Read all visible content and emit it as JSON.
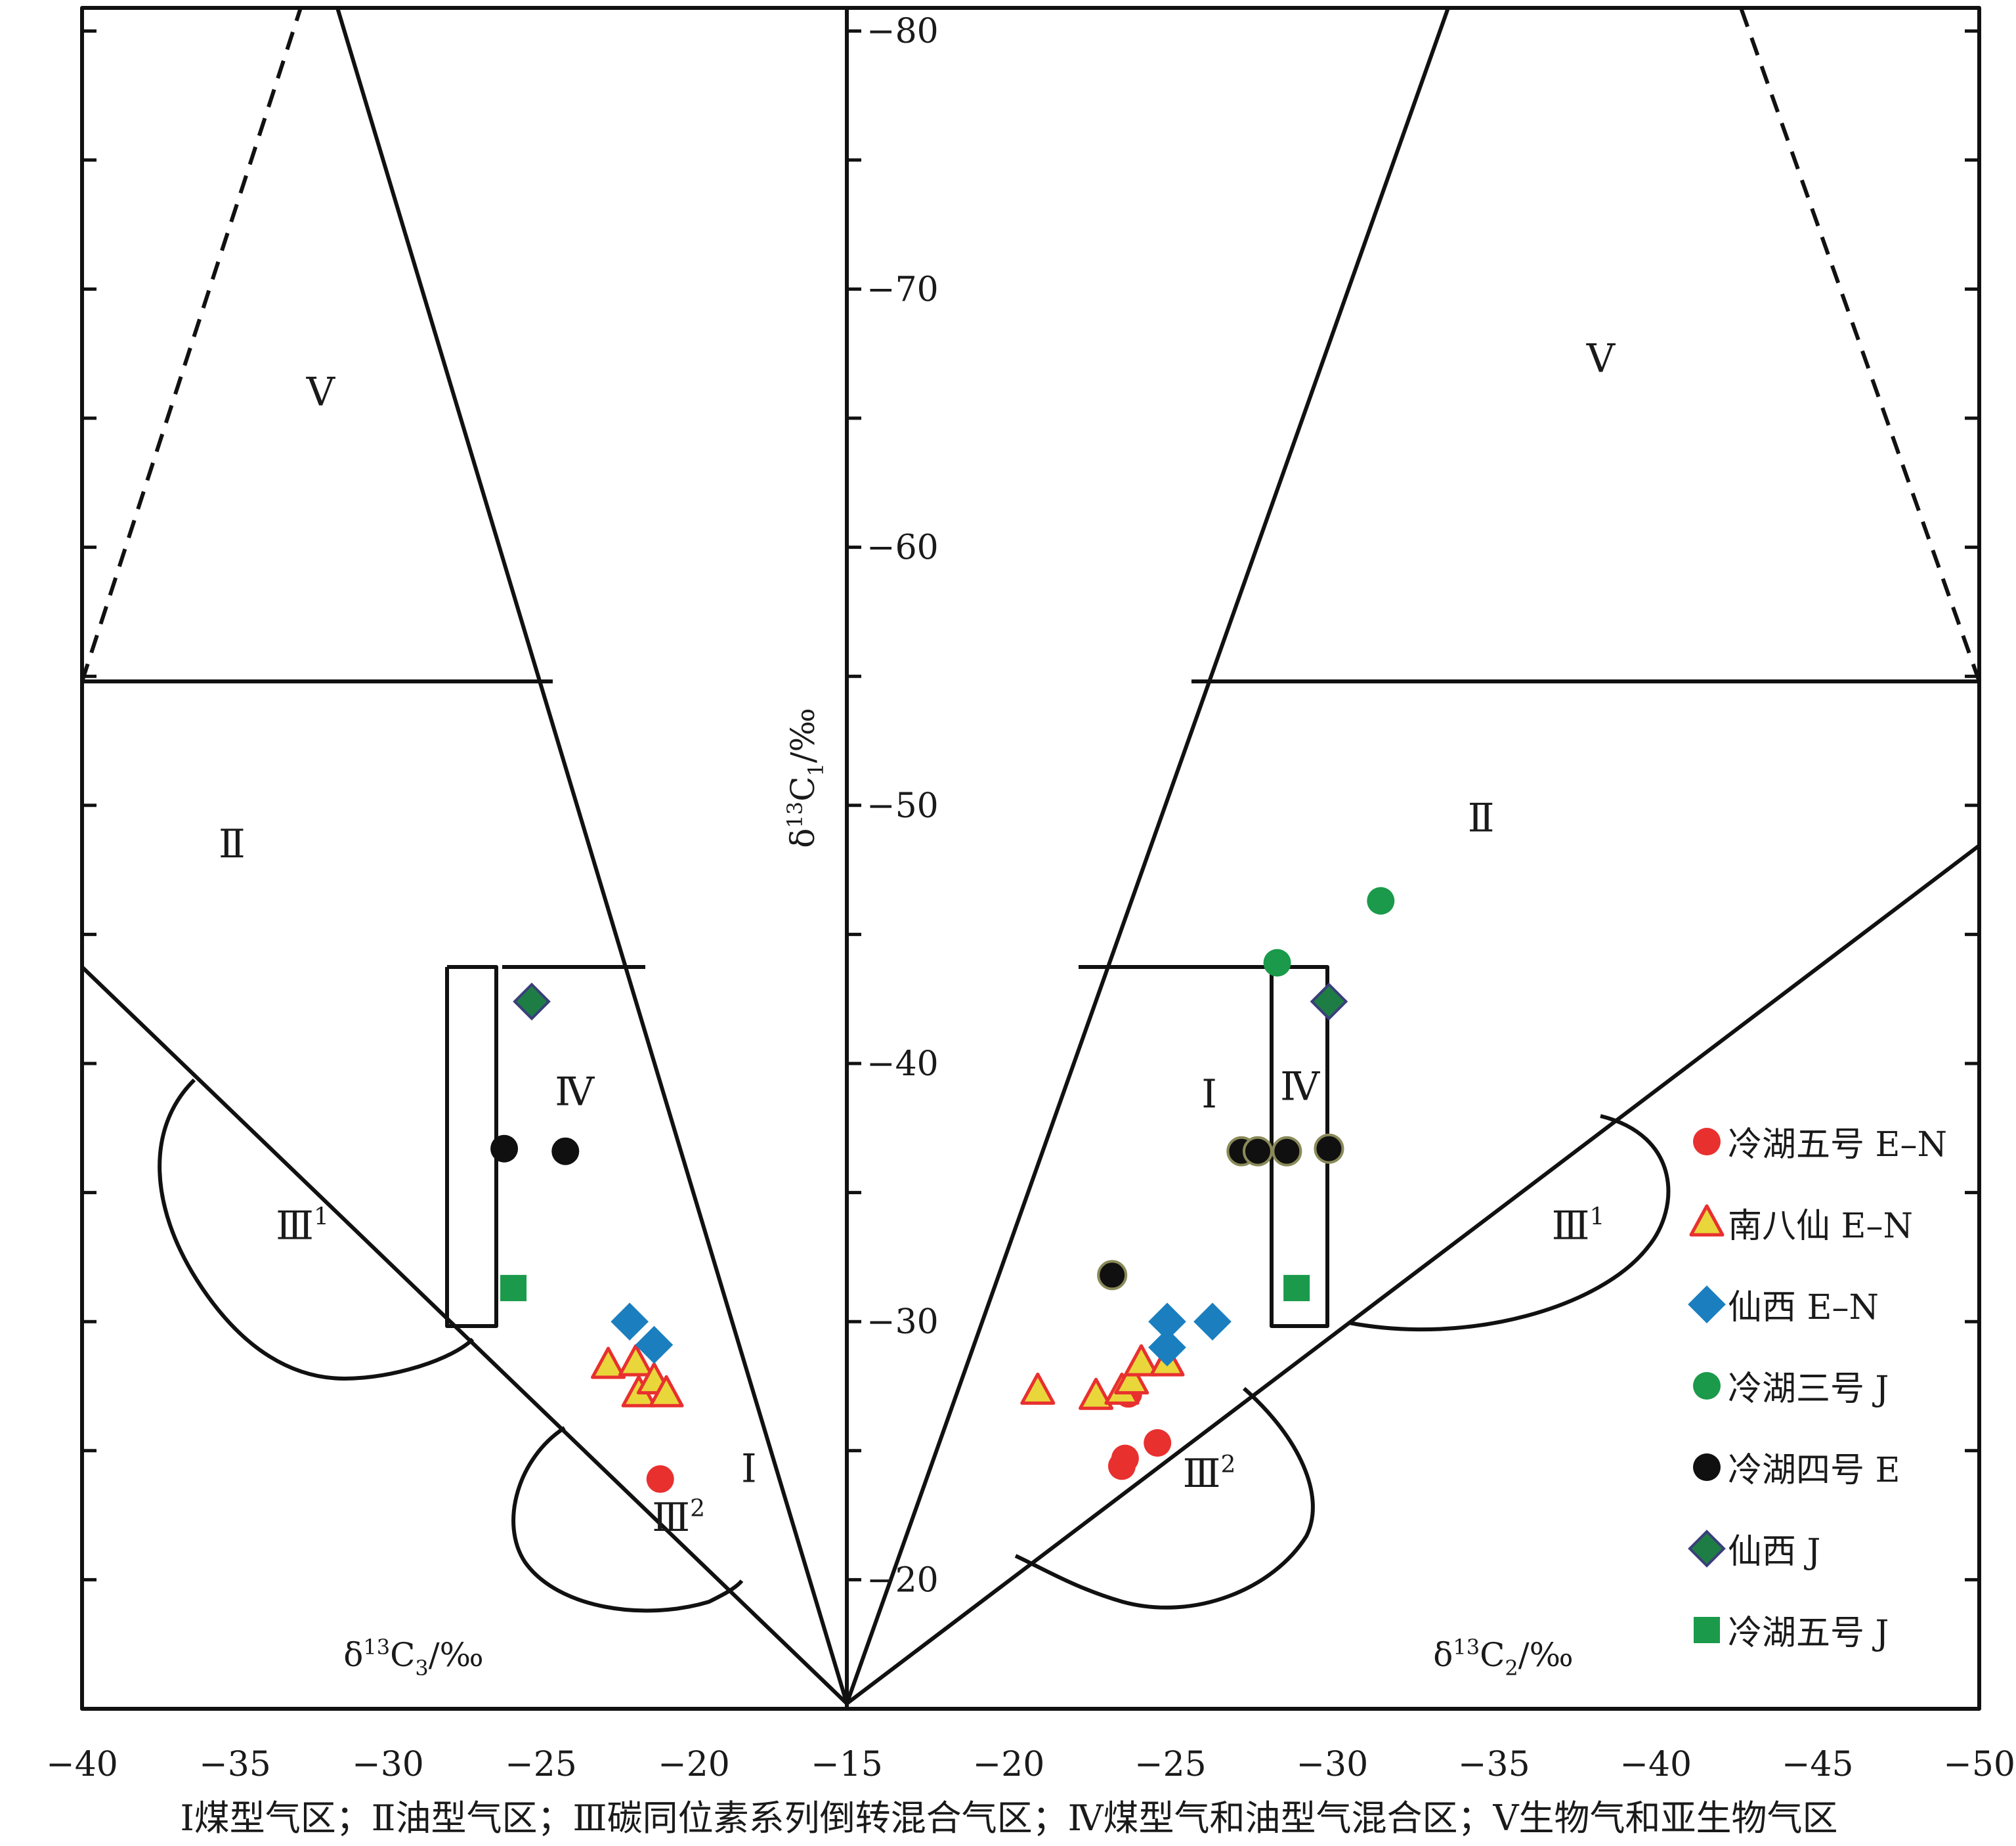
{
  "chart_data": {
    "type": "scatter",
    "title": "",
    "caption": "Ⅰ煤型气区；Ⅱ油型气区；Ⅲ碳同位素系列倒转混合气区；Ⅳ煤型气和油型气混合区；Ⅴ生物气和亚生物气区",
    "panels": [
      {
        "id": "left",
        "xlabel": "δ13C3/‰",
        "xlim": [
          -40,
          -15
        ],
        "xticks": [
          -40,
          -35,
          -30,
          -25,
          -20,
          -15
        ],
        "zone_labels": [
          {
            "text": "Ⅴ",
            "x": -32.2,
            "y": -66
          },
          {
            "text": "Ⅱ",
            "x": -35.1,
            "y": -48.5
          },
          {
            "text": "Ⅳ",
            "x": -23.9,
            "y": -38.9
          },
          {
            "text": "Ⅲ¹",
            "x": -32.8,
            "y": -33.7
          },
          {
            "text": "Ⅲ²",
            "x": -20.5,
            "y": -22.4
          },
          {
            "text": "Ⅰ",
            "x": -18.2,
            "y": -24.3
          }
        ]
      },
      {
        "id": "right",
        "xlabel": "δ13C2/‰",
        "xlim": [
          -15,
          -50
        ],
        "xticks": [
          -15,
          -20,
          -25,
          -30,
          -35,
          -40,
          -45,
          -50
        ],
        "zone_labels": [
          {
            "text": "Ⅴ",
            "x": -38.3,
            "y": -67.3
          },
          {
            "text": "Ⅱ",
            "x": -34.6,
            "y": -49.5
          },
          {
            "text": "Ⅰ",
            "x": -26.2,
            "y": -38.8
          },
          {
            "text": "Ⅳ",
            "x": -29.0,
            "y": -39.1
          },
          {
            "text": "Ⅲ¹",
            "x": -37.6,
            "y": -33.7
          },
          {
            "text": "Ⅲ²",
            "x": -26.2,
            "y": -24.1
          }
        ]
      }
    ],
    "ylabel": "δ13C1/‰",
    "ylim": [
      -15,
      -81
    ],
    "yticks": [
      -20,
      -30,
      -40,
      -50,
      -60,
      -70,
      -80
    ],
    "series": [
      {
        "name": "冷湖五号 E–N",
        "marker": "circle",
        "fill": "#e8302f",
        "stroke": "#e8302f",
        "left_points": [
          [
            -21.1,
            -23.9
          ]
        ],
        "right_points": [
          [
            -23.7,
            -27.2
          ],
          [
            -23.6,
            -24.7
          ],
          [
            -23.5,
            -24.4
          ],
          [
            -24.6,
            -25.3
          ]
        ]
      },
      {
        "name": "南八仙 E–N",
        "marker": "triangle",
        "fill": "#e9d63b",
        "stroke": "#e8302f",
        "left_points": [
          [
            -22.8,
            -28.3
          ],
          [
            -21.9,
            -28.4
          ],
          [
            -21.8,
            -27.2
          ],
          [
            -21.3,
            -27.7
          ],
          [
            -20.9,
            -27.2
          ]
        ],
        "right_points": [
          [
            -20.9,
            -27.3
          ],
          [
            -22.7,
            -27.1
          ],
          [
            -23.5,
            -27.3
          ],
          [
            -23.8,
            -27.7
          ],
          [
            -24.1,
            -28.4
          ],
          [
            -24.9,
            -28.4
          ]
        ]
      },
      {
        "name": "仙西 E–N",
        "marker": "diamond",
        "fill": "#1b7fbf",
        "stroke": "#1b7fbf",
        "left_points": [
          [
            -22.1,
            -30.0
          ],
          [
            -21.3,
            -29.1
          ]
        ],
        "right_points": [
          [
            -24.9,
            -30.0
          ],
          [
            -26.3,
            -30.0
          ],
          [
            -24.9,
            -29.0
          ]
        ]
      },
      {
        "name": "冷湖三号 J",
        "marker": "circle",
        "fill": "#1a9a4a",
        "stroke": "#1a9a4a",
        "left_points": [],
        "right_points": [
          [
            -28.3,
            -43.9
          ],
          [
            -31.5,
            -46.3
          ]
        ]
      },
      {
        "name": "冷湖四号 E",
        "marker": "circle",
        "fill": "#101010",
        "stroke": "#101010",
        "left_points": [
          [
            -26.2,
            -36.7
          ],
          [
            -24.2,
            -36.6
          ]
        ],
        "right_points": [
          [
            -23.2,
            -31.8
          ],
          [
            -27.2,
            -36.6
          ],
          [
            -27.7,
            -36.6
          ],
          [
            -28.6,
            -36.6
          ],
          [
            -29.9,
            -36.7
          ]
        ]
      },
      {
        "name": "仙西 J",
        "marker": "diamond",
        "fill": "#1e7d45",
        "stroke": "#3a3f7a",
        "left_points": [
          [
            -25.3,
            -42.4
          ]
        ],
        "right_points": [
          [
            -29.9,
            -42.4
          ]
        ]
      },
      {
        "name": "冷湖五号 J",
        "marker": "square",
        "fill": "#1a9a4a",
        "stroke": "#1a9a4a",
        "left_points": [
          [
            -25.9,
            -31.3
          ]
        ],
        "right_points": [
          [
            -28.9,
            -31.3
          ]
        ]
      }
    ],
    "grid": false,
    "legend": "right"
  }
}
